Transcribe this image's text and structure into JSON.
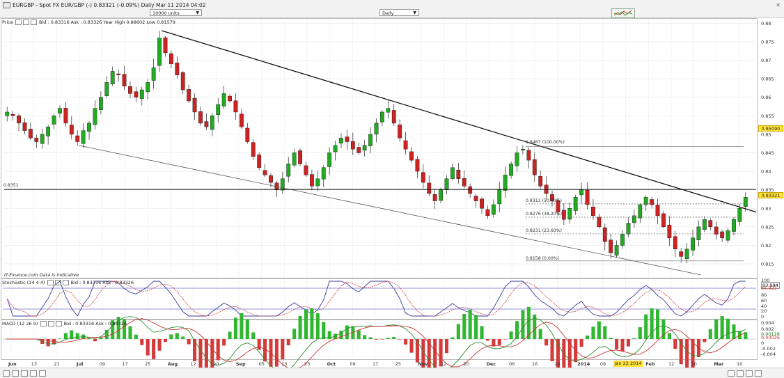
{
  "window": {
    "title": "EURGBP - Spot FX EUR/GBP (-)   0.83321 (-0.09%)   Daily  Mar 11 2014 04:02",
    "units_select": "10000 units",
    "timeframe_select": "Daily"
  },
  "price_panel": {
    "header": "Price",
    "quote": "Bid : 0.83316 Ask : 0.83326  Year High 0.88602 Low 0.81579",
    "source": "IT-Finance.com  Data is indicative",
    "current_price": "0.83321",
    "marker_price": "0.85090",
    "horizontal_level_label": "0.8351"
  },
  "fib_levels": [
    {
      "label": "0.8467 (100.00%)",
      "value": 0.8467
    },
    {
      "label": "0.8312 (50.00%)",
      "value": 0.8312
    },
    {
      "label": "0.8276 (38.20%)",
      "value": 0.8276
    },
    {
      "label": "0.8231 (23.60%)",
      "value": 0.8231
    },
    {
      "label": "0.8158 (0.00%)",
      "value": 0.8158
    }
  ],
  "stochastic_panel": {
    "header": "Stochastic (14 4 4)",
    "quote": "Bid : 0.83316 Ask : 0.83326",
    "values": [
      "93.994",
      "84.923"
    ],
    "axis_ticks": [
      "100",
      "80",
      "60",
      "40",
      "20",
      "0"
    ]
  },
  "macd_panel": {
    "header": "MACD (12 26 9)",
    "quote": "Bid : 0.83316 Ask : 0.83326",
    "values": [
      "0.00128",
      "0.00026"
    ],
    "axis_ticks": [
      "0.004",
      "0.002",
      "0",
      "-0.002",
      "-0.004"
    ]
  },
  "x_axis_labels": [
    "Jun",
    "13",
    "21",
    "Jul",
    "09",
    "17",
    "25",
    "Aug",
    "12",
    "20",
    "Sep",
    "05",
    "13",
    "23",
    "Oct",
    "09",
    "17",
    "25",
    "Nov",
    "12",
    "20",
    "Dec",
    "06",
    "16",
    "24",
    "2014",
    "09",
    "Jan 22 2014",
    "Feb",
    "12",
    "20",
    "Mar",
    "10"
  ],
  "chart_data": {
    "type": "candlestick",
    "symbol": "EURGBP",
    "interval": "Daily",
    "y_ticks": [
      0.815,
      0.82,
      0.825,
      0.83,
      0.835,
      0.84,
      0.845,
      0.85,
      0.855,
      0.86,
      0.865,
      0.87,
      0.875,
      0.88
    ],
    "ylim": [
      0.812,
      0.881
    ],
    "close_series": [
      0.856,
      0.855,
      0.853,
      0.851,
      0.849,
      0.848,
      0.85,
      0.852,
      0.855,
      0.857,
      0.853,
      0.85,
      0.848,
      0.851,
      0.853,
      0.857,
      0.86,
      0.864,
      0.867,
      0.866,
      0.863,
      0.861,
      0.86,
      0.862,
      0.864,
      0.868,
      0.876,
      0.872,
      0.869,
      0.866,
      0.862,
      0.859,
      0.856,
      0.853,
      0.852,
      0.855,
      0.858,
      0.861,
      0.859,
      0.856,
      0.852,
      0.848,
      0.844,
      0.841,
      0.839,
      0.837,
      0.835,
      0.838,
      0.842,
      0.845,
      0.842,
      0.839,
      0.836,
      0.838,
      0.841,
      0.845,
      0.847,
      0.849,
      0.848,
      0.846,
      0.845,
      0.847,
      0.85,
      0.853,
      0.856,
      0.857,
      0.853,
      0.849,
      0.846,
      0.843,
      0.84,
      0.837,
      0.834,
      0.832,
      0.835,
      0.838,
      0.841,
      0.838,
      0.836,
      0.834,
      0.832,
      0.83,
      0.828,
      0.831,
      0.835,
      0.839,
      0.842,
      0.845,
      0.846,
      0.843,
      0.839,
      0.836,
      0.834,
      0.832,
      0.829,
      0.827,
      0.83,
      0.833,
      0.835,
      0.831,
      0.828,
      0.825,
      0.821,
      0.818,
      0.82,
      0.823,
      0.826,
      0.828,
      0.831,
      0.833,
      0.831,
      0.828,
      0.825,
      0.822,
      0.819,
      0.817,
      0.819,
      0.822,
      0.825,
      0.827,
      0.825,
      0.823,
      0.822,
      0.824,
      0.827,
      0.83,
      0.833
    ],
    "trendlines": [
      {
        "name": "upper",
        "from": [
          "2013-07-29",
          0.878
        ],
        "to": [
          "2014-03-12",
          0.829
        ]
      },
      {
        "name": "lower",
        "from": [
          "2013-06-28",
          0.847
        ],
        "to": [
          "2014-02-28",
          0.812
        ]
      }
    ],
    "horizontal_line": 0.8351
  }
}
